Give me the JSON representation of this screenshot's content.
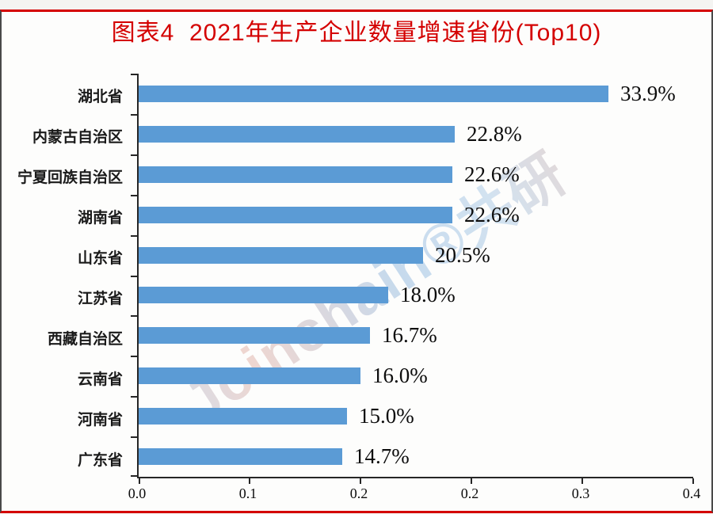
{
  "header": {
    "title": "图表4  2021年生产企业数量增速省份(Top10)"
  },
  "watermark": {
    "text": "Joinchain®共研"
  },
  "colors": {
    "title_red": "#d40000",
    "bar_blue": "#5B9BD5",
    "axis_dark": "#262626",
    "watermark_blue": "#bdd5eb",
    "watermark_pink": "#eccdc6"
  },
  "chart_data": {
    "type": "bar",
    "orientation": "horizontal",
    "title": "图表4 2021年生产企业数量增速省份(Top10)",
    "categories": [
      "湖北省",
      "内蒙古自治区",
      "宁夏回族自治区",
      "湖南省",
      "山东省",
      "江苏省",
      "西藏自治区",
      "云南省",
      "河南省",
      "广东省"
    ],
    "values": [
      0.339,
      0.228,
      0.226,
      0.226,
      0.205,
      0.18,
      0.167,
      0.16,
      0.15,
      0.147
    ],
    "value_labels": [
      "33.9%",
      "22.8%",
      "22.6%",
      "22.6%",
      "20.5%",
      "18.0%",
      "16.7%",
      "16.0%",
      "15.0%",
      "14.7%"
    ],
    "xlim": [
      0,
      0.4
    ],
    "x_tick_labels": [
      "0.0",
      "0.1",
      "0.2",
      "0.2",
      "0.3",
      "0.4"
    ],
    "xlabel": "",
    "ylabel": "",
    "grid": false,
    "legend": false,
    "bar_color": "#5B9BD5"
  }
}
